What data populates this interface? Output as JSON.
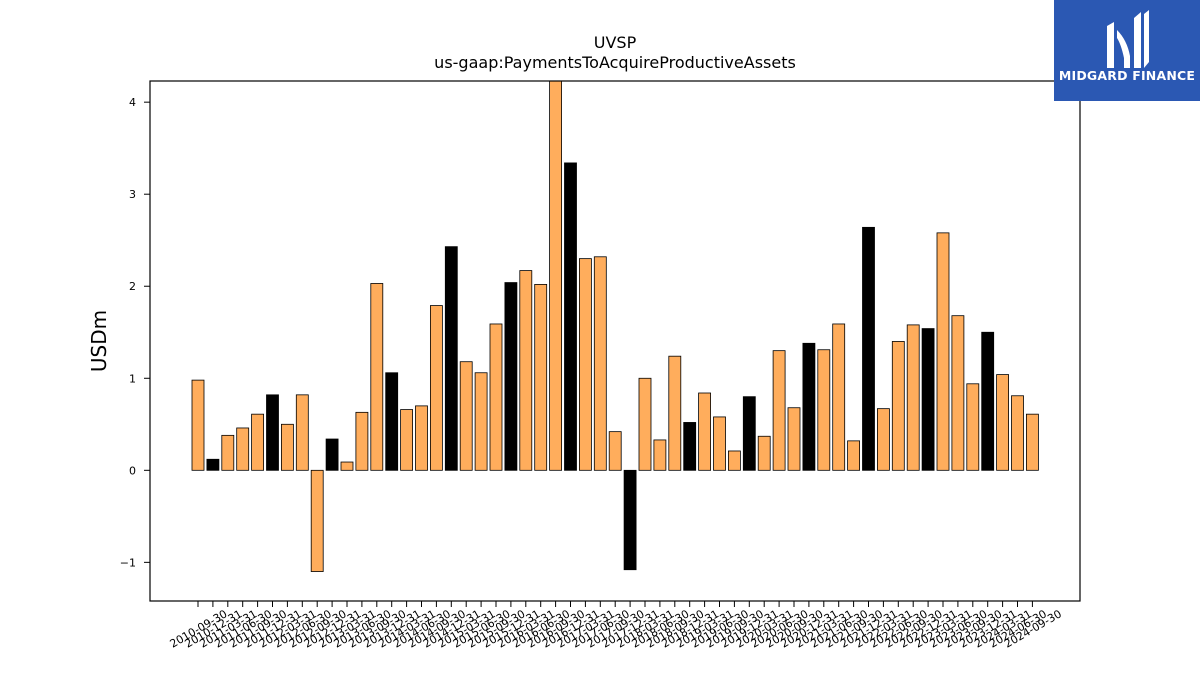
{
  "chart_data": {
    "type": "bar",
    "title": "UVSP",
    "subtitle": "us-gaap:PaymentsToAcquireProductiveAssets",
    "xlabel": "",
    "ylabel": "USDm",
    "ylim": [
      -1.42,
      4.23
    ],
    "yticks": [
      -1,
      0,
      1,
      2,
      3,
      4
    ],
    "ytick_labels": [
      "−1",
      "0",
      "1",
      "2",
      "3",
      "4"
    ],
    "grid": false,
    "colors": {
      "quarter": "#ffad5c",
      "year_end": "#000000",
      "edge": "#000000"
    },
    "categories": [
      "2010-09-30",
      "2010-12-31",
      "2011-03-31",
      "2011-06-30",
      "2011-09-30",
      "2011-12-31",
      "2012-03-31",
      "2012-06-30",
      "2012-09-30",
      "2012-12-31",
      "2013-03-31",
      "2013-06-30",
      "2013-09-30",
      "2013-12-31",
      "2014-03-31",
      "2014-06-30",
      "2014-09-30",
      "2014-12-31",
      "2015-03-31",
      "2015-06-30",
      "2015-09-30",
      "2015-12-31",
      "2016-03-31",
      "2016-06-30",
      "2016-09-30",
      "2016-12-31",
      "2017-03-31",
      "2017-06-30",
      "2017-09-30",
      "2017-12-31",
      "2018-03-31",
      "2018-06-30",
      "2018-09-30",
      "2018-12-31",
      "2019-03-31",
      "2019-06-30",
      "2019-09-30",
      "2019-12-31",
      "2020-03-31",
      "2020-06-30",
      "2020-09-30",
      "2020-12-31",
      "2021-03-31",
      "2021-06-30",
      "2021-09-30",
      "2021-12-31",
      "2022-03-31",
      "2022-06-30",
      "2022-09-30",
      "2022-12-31",
      "2023-03-31",
      "2023-06-30",
      "2023-09-30",
      "2023-12-31",
      "2024-03-31",
      "2024-06-30",
      "2024-09-30"
    ],
    "values": [
      0.98,
      0.12,
      0.38,
      0.46,
      0.61,
      0.82,
      0.5,
      0.82,
      -1.1,
      0.34,
      0.09,
      0.63,
      2.03,
      1.06,
      0.66,
      0.7,
      1.79,
      2.43,
      1.18,
      1.06,
      1.59,
      2.04,
      2.17,
      2.02,
      4.23,
      3.34,
      2.3,
      2.32,
      0.42,
      -1.08,
      1.0,
      0.33,
      1.24,
      0.52,
      0.84,
      0.58,
      0.21,
      0.8,
      0.37,
      1.3,
      0.68,
      1.38,
      1.31,
      1.59,
      0.32,
      2.64,
      0.67,
      1.4,
      1.58,
      1.54,
      2.58,
      1.68,
      0.94,
      1.5,
      1.04,
      0.81,
      0.61
    ],
    "year_end": [
      false,
      true,
      false,
      false,
      false,
      true,
      false,
      false,
      false,
      true,
      false,
      false,
      false,
      true,
      false,
      false,
      false,
      true,
      false,
      false,
      false,
      true,
      false,
      false,
      false,
      true,
      false,
      false,
      false,
      true,
      false,
      false,
      false,
      true,
      false,
      false,
      false,
      true,
      false,
      false,
      false,
      true,
      false,
      false,
      false,
      true,
      false,
      false,
      false,
      true,
      false,
      false,
      false,
      true,
      false,
      false,
      false
    ]
  },
  "logo": {
    "text": "MIDGARD FINANCE"
  }
}
